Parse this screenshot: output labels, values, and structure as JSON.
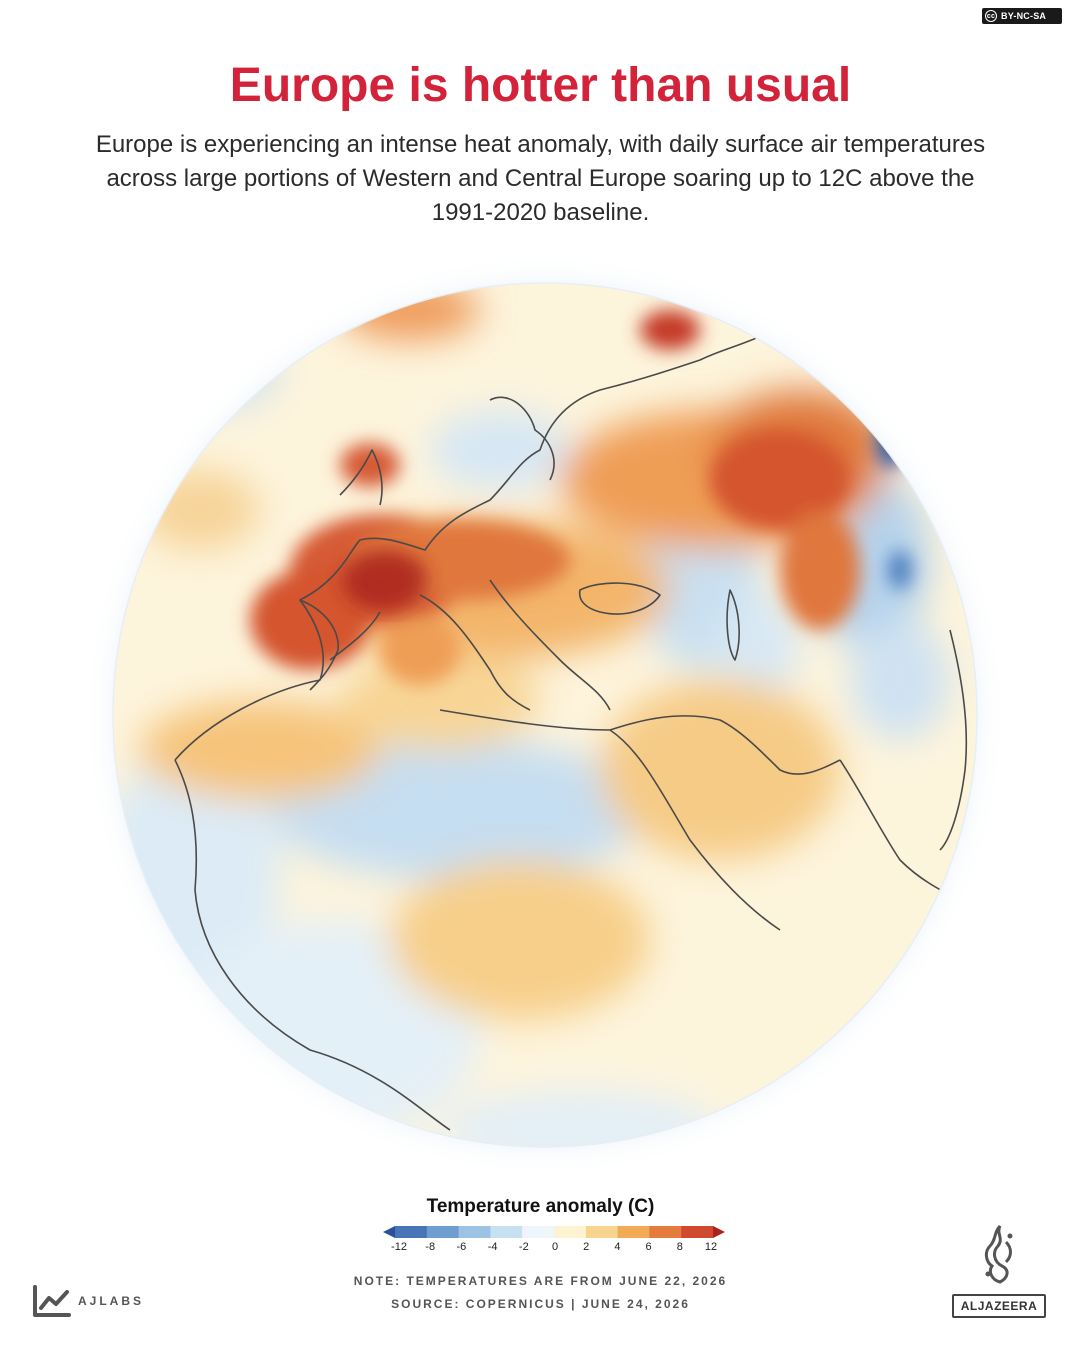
{
  "license": {
    "label": "BY-NC-SA",
    "icon": "cc-icon"
  },
  "title": "Europe is hotter than usual",
  "subtitle": "Europe is experiencing an intense heat anomaly, with daily surface air temperatures across large portions of Western and Central Europe soaring up to 12C above the 1991-2020 baseline.",
  "legend": {
    "title": "Temperature anomaly (C)",
    "ticks": [
      "-12",
      "-8",
      "-6",
      "-4",
      "-2",
      "0",
      "2",
      "4",
      "6",
      "8",
      "12"
    ],
    "colors": [
      "#2c4f9a",
      "#4776b8",
      "#6f9ed0",
      "#9dc3e4",
      "#c8e1f2",
      "#eef6fb",
      "#fdf3d2",
      "#f8d58f",
      "#f2aa57",
      "#e57b3c",
      "#cf4a2c",
      "#a8231e"
    ]
  },
  "note": "NOTE: TEMPERATURES ARE FROM JUNE 22, 2026",
  "source": "SOURCE:  COPERNICUS  |  JUNE 24, 2026",
  "branding": {
    "lab": "AJLABS",
    "outlet": "ALJAZEERA",
    "lab_icon": "ajlabs-logo-icon",
    "outlet_icon": "aljazeera-logo-icon"
  }
}
